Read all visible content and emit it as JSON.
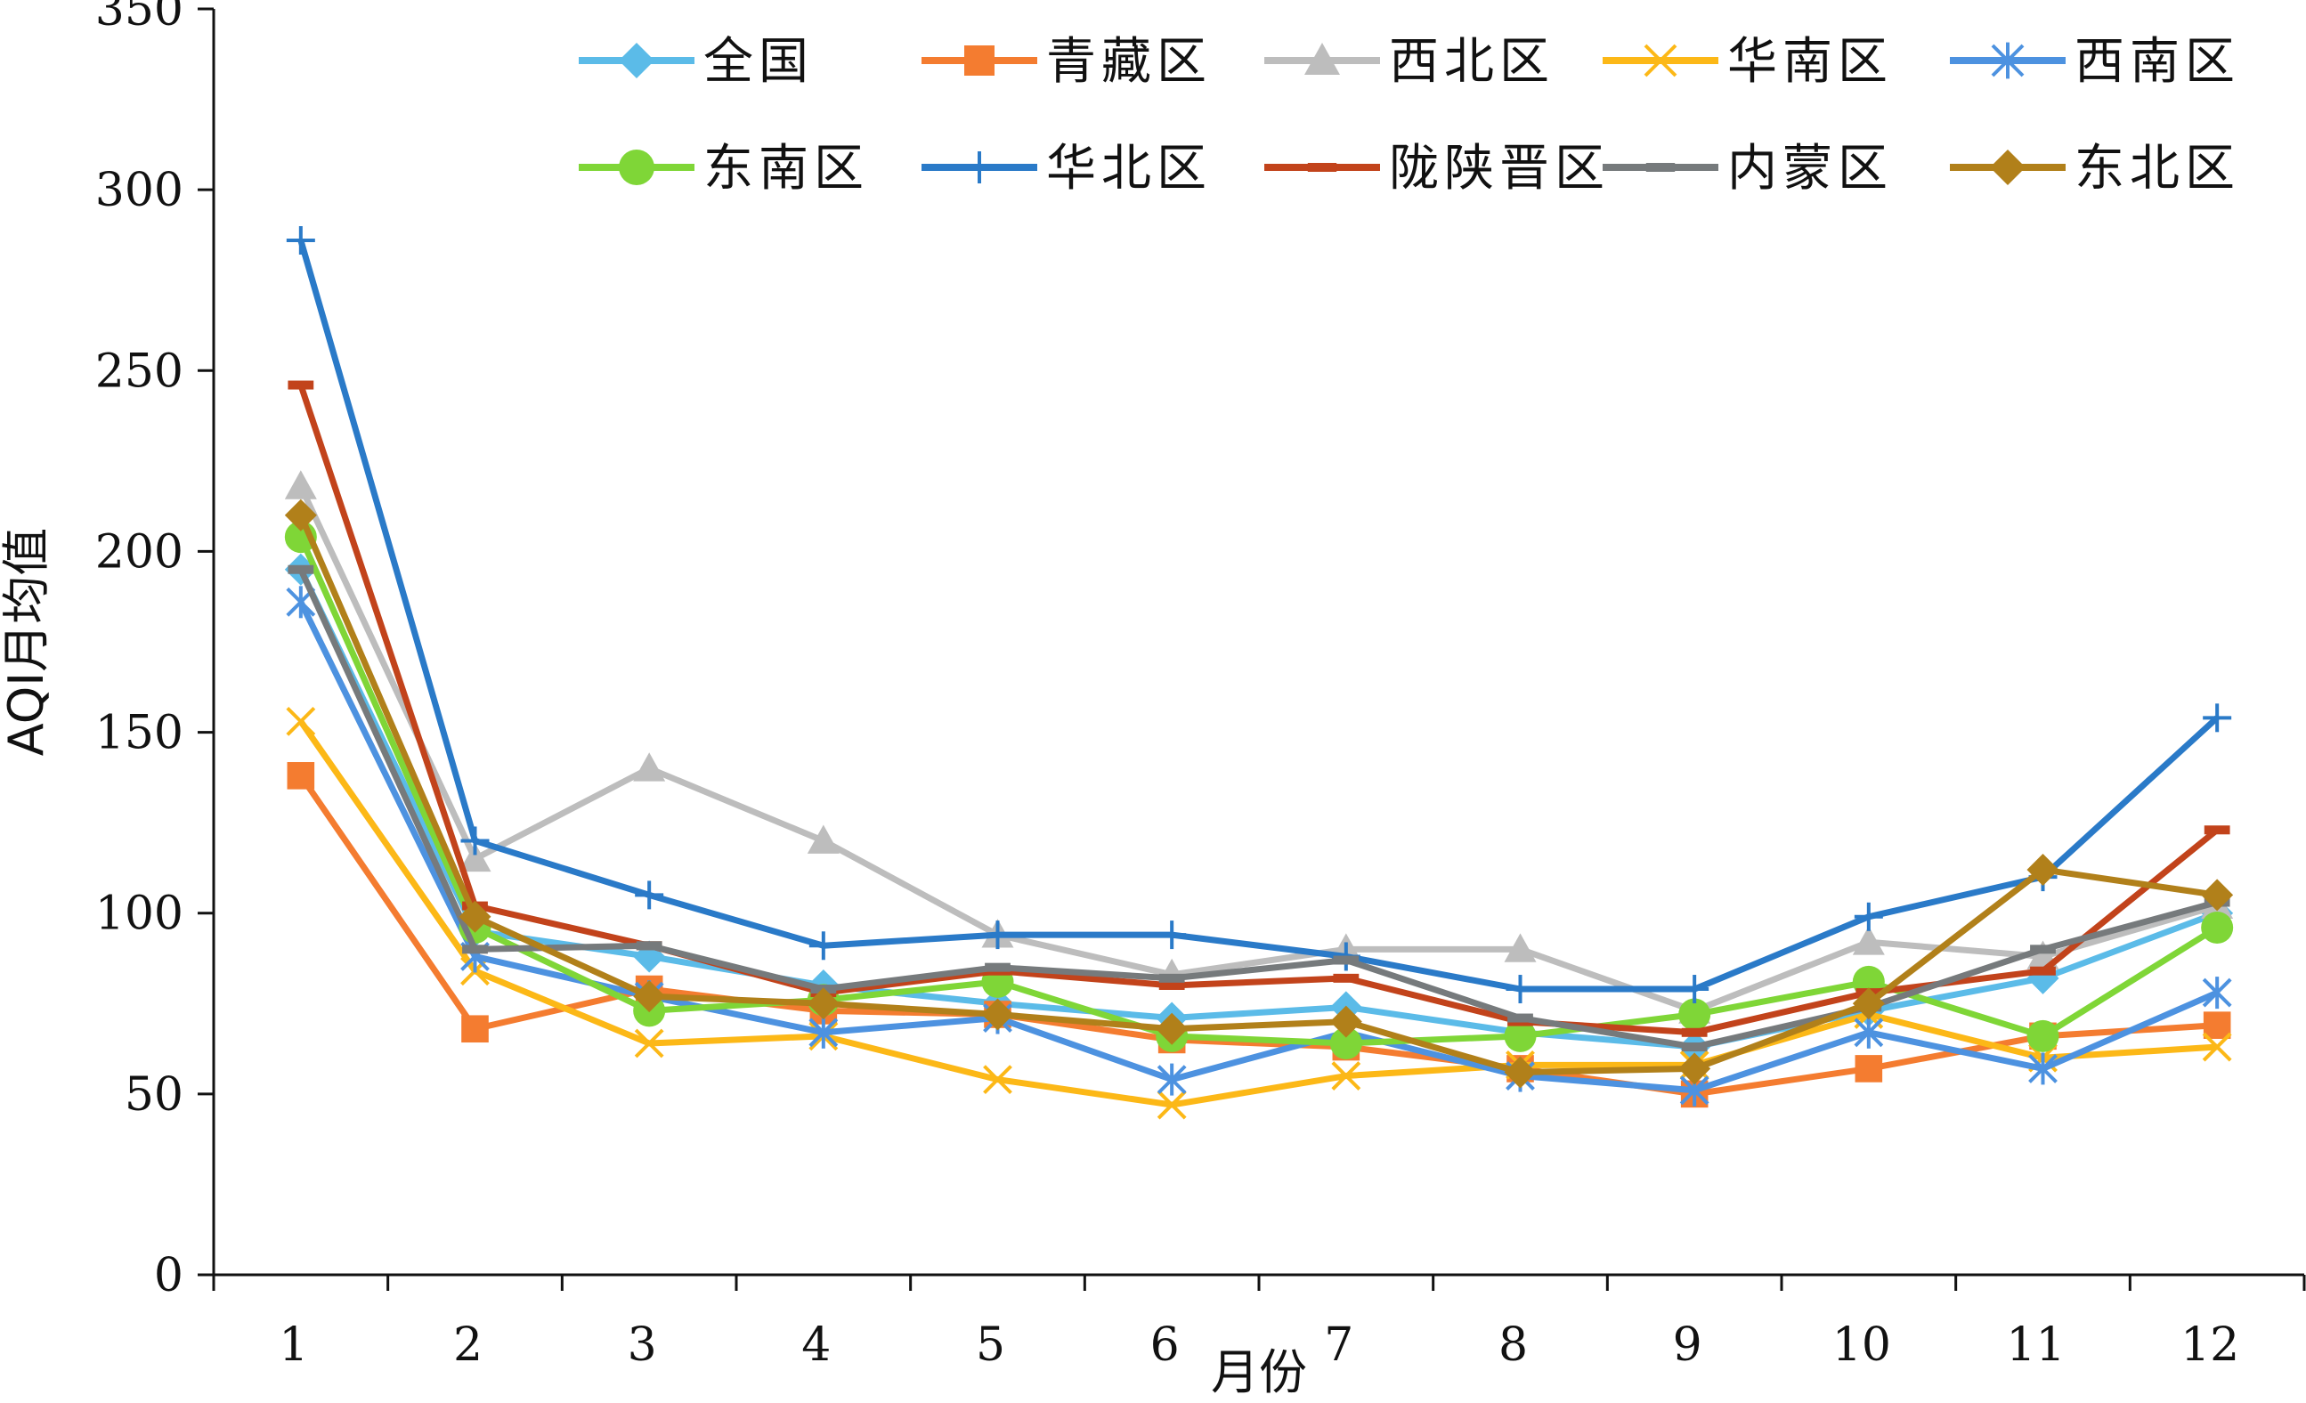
{
  "chart_data": {
    "type": "line",
    "title": "",
    "xlabel": "月份",
    "ylabel": "AQI月均值",
    "x": [
      1,
      2,
      3,
      4,
      5,
      6,
      7,
      8,
      9,
      10,
      11,
      12
    ],
    "ylim": [
      0,
      350
    ],
    "yticks": [
      0,
      50,
      100,
      150,
      200,
      250,
      300,
      350
    ],
    "grid": false,
    "legend": "top",
    "series": [
      {
        "name": "全国",
        "color": "#5bbbe8",
        "marker": "diamond",
        "values": [
          195,
          95,
          88,
          80,
          75,
          71,
          74,
          67,
          63,
          73,
          82,
          100
        ]
      },
      {
        "name": "青藏区",
        "color": "#f47c30",
        "marker": "square",
        "values": [
          138,
          68,
          79,
          73,
          72,
          65,
          63,
          57,
          50,
          57,
          66,
          69
        ]
      },
      {
        "name": "西北区",
        "color": "#bdbdbd",
        "marker": "triangle",
        "values": [
          218,
          115,
          140,
          120,
          94,
          83,
          90,
          90,
          73,
          92,
          88,
          102
        ]
      },
      {
        "name": "华南区",
        "color": "#fcb817",
        "marker": "x",
        "values": [
          153,
          84,
          64,
          66,
          54,
          47,
          55,
          58,
          58,
          72,
          60,
          63
        ]
      },
      {
        "name": "西南区",
        "color": "#4d92e0",
        "marker": "star",
        "values": [
          186,
          88,
          77,
          67,
          71,
          54,
          67,
          55,
          51,
          67,
          57,
          78
        ]
      },
      {
        "name": "东南区",
        "color": "#7fd637",
        "marker": "circle",
        "values": [
          204,
          96,
          73,
          76,
          81,
          66,
          64,
          66,
          72,
          81,
          66,
          96
        ]
      },
      {
        "name": "华北区",
        "color": "#2a7ac8",
        "marker": "plus",
        "values": [
          286,
          120,
          105,
          91,
          94,
          94,
          88,
          79,
          79,
          99,
          110,
          154
        ]
      },
      {
        "name": "陇陕晋区",
        "color": "#c2431b",
        "marker": "dash",
        "values": [
          246,
          102,
          91,
          78,
          84,
          80,
          82,
          70,
          67,
          78,
          84,
          123
        ]
      },
      {
        "name": "内蒙区",
        "color": "#767a7c",
        "marker": "dash",
        "values": [
          195,
          90,
          91,
          79,
          85,
          82,
          87,
          71,
          63,
          74,
          90,
          103
        ]
      },
      {
        "name": "东北区",
        "color": "#b1801a",
        "marker": "diamond",
        "values": [
          210,
          99,
          77,
          75,
          72,
          68,
          70,
          56,
          57,
          75,
          112,
          105
        ]
      }
    ]
  }
}
